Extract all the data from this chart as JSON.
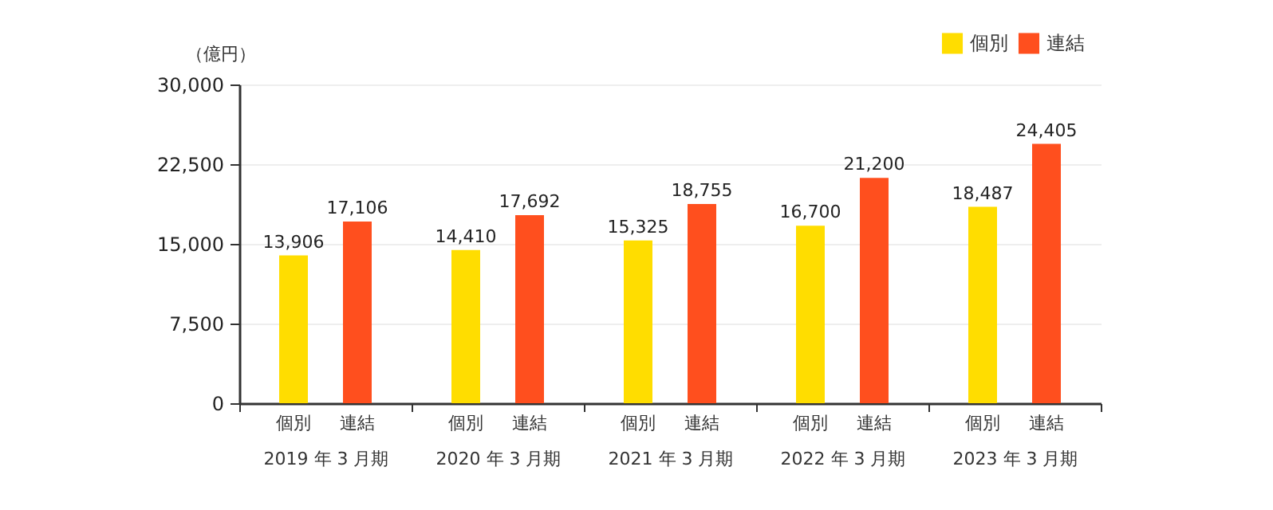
{
  "chart_data": {
    "type": "bar",
    "ylabel": "（億円）",
    "categories": [
      "2019 年 3 月期",
      "2020 年 3 月期",
      "2021 年 3 月期",
      "2022 年 3 月期",
      "2023 年 3 月期"
    ],
    "series": [
      {
        "name": "個別",
        "color": "#ffdd00",
        "values": [
          13906,
          14410,
          15325,
          16700,
          18487
        ],
        "value_labels": [
          "13,906",
          "14,410",
          "15,325",
          "16,700",
          "18,487"
        ]
      },
      {
        "name": "連結",
        "color": "#ff4f1e",
        "values": [
          17106,
          17692,
          18755,
          21200,
          24405
        ],
        "value_labels": [
          "17,106",
          "17,692",
          "18,755",
          "21,200",
          "24,405"
        ]
      }
    ],
    "ylim": [
      0,
      30000
    ],
    "yticks": [
      0,
      {
        "value": 7500,
        "label": "7,500"
      },
      {
        "value": 15000,
        "label": "15,000"
      },
      {
        "value": 22500,
        "label": "22,500"
      },
      {
        "value": 30000,
        "label": "30,000"
      }
    ],
    "grid": "y",
    "legend": "top right"
  }
}
